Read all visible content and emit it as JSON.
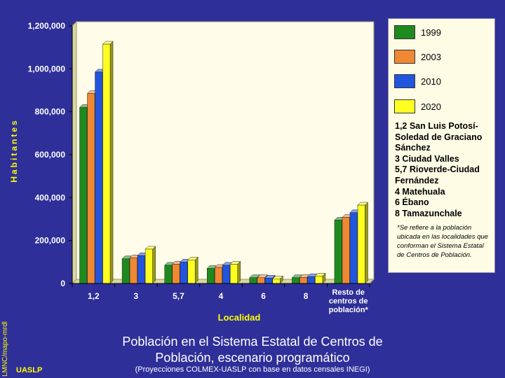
{
  "chart_data": {
    "type": "bar",
    "xlabel": "Localidad",
    "ylabel": "Habitantes",
    "ylim": [
      0,
      1200000
    ],
    "y_ticks": [
      "0",
      "200,000",
      "400,000",
      "600,000",
      "800,000",
      "1,000,000",
      "1,200,000"
    ],
    "categories": [
      "1,2",
      "3",
      "5,7",
      "4",
      "6",
      "8",
      "Resto de centros de población*"
    ],
    "series": [
      {
        "name": "1999",
        "color": "#1e8a1e",
        "values": [
          820000,
          115000,
          85000,
          70000,
          27000,
          27000,
          295000
        ]
      },
      {
        "name": "2003",
        "color": "#ee8833",
        "values": [
          885000,
          120000,
          90000,
          75000,
          27000,
          28000,
          308000
        ]
      },
      {
        "name": "2010",
        "color": "#2255dd",
        "values": [
          985000,
          130000,
          100000,
          85000,
          25000,
          32000,
          330000
        ]
      },
      {
        "name": "2020",
        "color": "#ffff22",
        "values": [
          1115000,
          160000,
          110000,
          90000,
          22000,
          35000,
          365000
        ]
      }
    ],
    "legend_position": "right",
    "grid": false
  },
  "legend": {
    "notes": [
      "1,2 San Luis Potosí-",
      "Soledad de Graciano",
      "Sánchez",
      "3 Ciudad Valles",
      "5,7 Rioverde-Ciudad",
      "Fernández",
      "4 Matehuala",
      "6 Ébano",
      "8 Tamazunchale"
    ],
    "footnote": "*Se refiere a la población ubicada en las localidades que conforman el Sistema Estatal de Centros de Población."
  },
  "title_line1": "Población en el Sistema Estatal de Centros de",
  "title_line2": "Población, escenario programático",
  "subtitle": "(Proyecciones COLMEX-UASLP con base en datos censales INEGI)",
  "credit_vertical": "LMNC/mapo-mrdl",
  "credit_org": "UASLP"
}
